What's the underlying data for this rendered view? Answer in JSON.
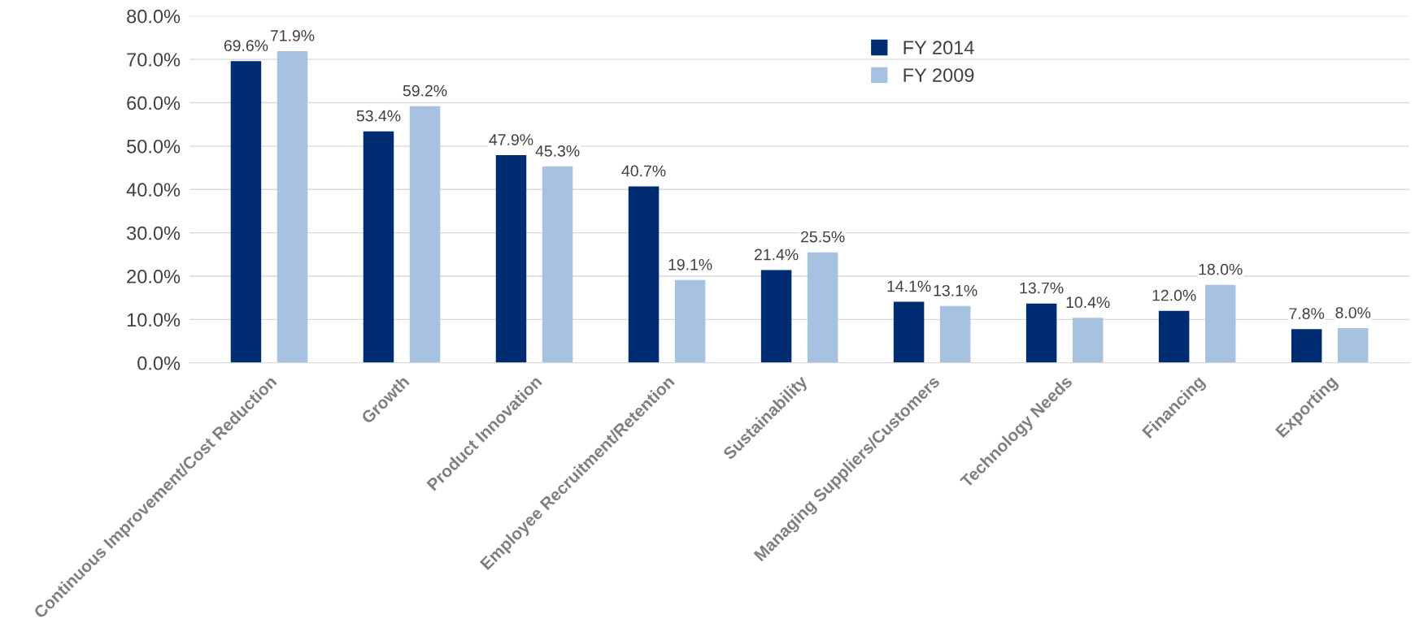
{
  "chart_data": {
    "type": "bar",
    "categories": [
      "Continuous Improvement/Cost Reduction",
      "Growth",
      "Product Innovation",
      "Employee Recruitment/Retention",
      "Sustainability",
      "Managing Suppliers/Customers",
      "Technology Needs",
      "Financing",
      "Exporting"
    ],
    "series": [
      {
        "name": "FY 2014",
        "color": "#002d72",
        "values": [
          69.6,
          53.4,
          47.9,
          40.7,
          21.4,
          14.1,
          13.7,
          12.0,
          7.8
        ],
        "value_labels": [
          "69.6%",
          "53.4%",
          "47.9%",
          "40.7%",
          "21.4%",
          "14.1%",
          "13.7%",
          "12.0%",
          "7.8%"
        ]
      },
      {
        "name": "FY 2009",
        "color": "#a7c1e0",
        "values": [
          71.9,
          59.2,
          45.3,
          19.1,
          25.5,
          13.1,
          10.4,
          18.0,
          8.0
        ],
        "value_labels": [
          "71.9%",
          "59.2%",
          "45.3%",
          "19.1%",
          "25.5%",
          "13.1%",
          "10.4%",
          "18.0%",
          "8.0%"
        ]
      }
    ],
    "ylim": [
      0,
      80
    ],
    "yticks": [
      {
        "value": 0,
        "label": "0.0%"
      },
      {
        "value": 10,
        "label": "10.0%"
      },
      {
        "value": 20,
        "label": "20.0%"
      },
      {
        "value": 30,
        "label": "30.0%"
      },
      {
        "value": 40,
        "label": "40.0%"
      },
      {
        "value": 50,
        "label": "50.0%"
      },
      {
        "value": 60,
        "label": "60.0%"
      },
      {
        "value": 70,
        "label": "70.0%"
      },
      {
        "value": 80,
        "label": "80.0%"
      }
    ],
    "grid": "y",
    "legend": "top"
  }
}
